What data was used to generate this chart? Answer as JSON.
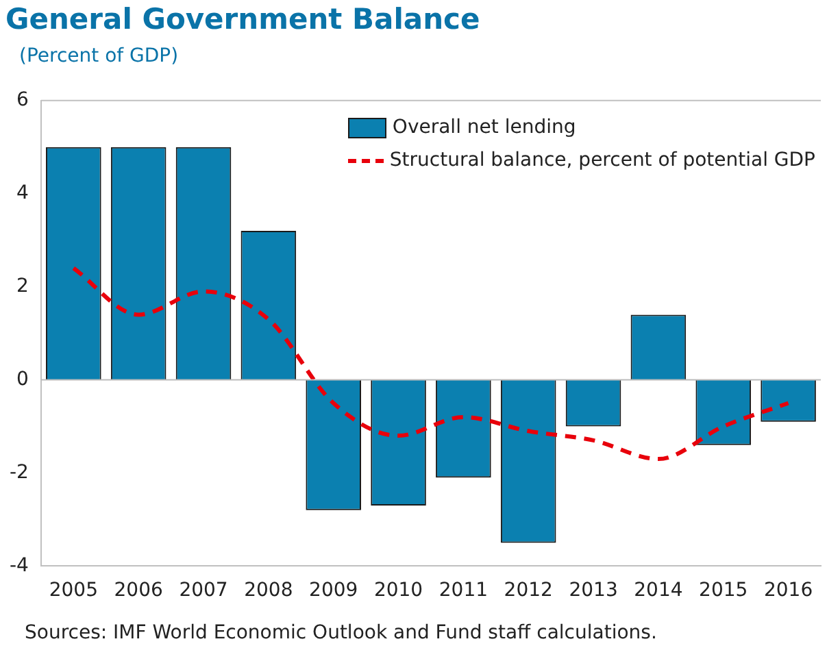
{
  "chart_data": {
    "type": "bar",
    "title": "General Government Balance",
    "subtitle": "(Percent of GDP)",
    "categories": [
      "2005",
      "2006",
      "2007",
      "2008",
      "2009",
      "2010",
      "2011",
      "2012",
      "2013",
      "2014",
      "2015",
      "2016"
    ],
    "series": [
      {
        "name": "Overall net lending",
        "color": "#0b80b0",
        "values": [
          5.0,
          5.0,
          5.0,
          3.2,
          -2.8,
          -2.7,
          -2.1,
          -3.5,
          -1.0,
          1.4,
          -1.4,
          -0.9
        ]
      },
      {
        "name": "Structural balance, percent of potential GDP",
        "type": "line",
        "color": "#e8000b",
        "line_style": "dashed",
        "values": [
          2.4,
          1.4,
          1.9,
          1.3,
          -0.5,
          -1.2,
          -0.8,
          -1.1,
          -1.3,
          -1.7,
          -1.0,
          -0.5
        ]
      }
    ],
    "ylim": [
      -4,
      6
    ],
    "yticks": [
      -4,
      -2,
      0,
      2,
      4,
      6
    ],
    "legend": "top right",
    "marker": "none",
    "annotations": [
      "Sources: IMF World Economic Outlook and Fund staff calculations."
    ]
  }
}
